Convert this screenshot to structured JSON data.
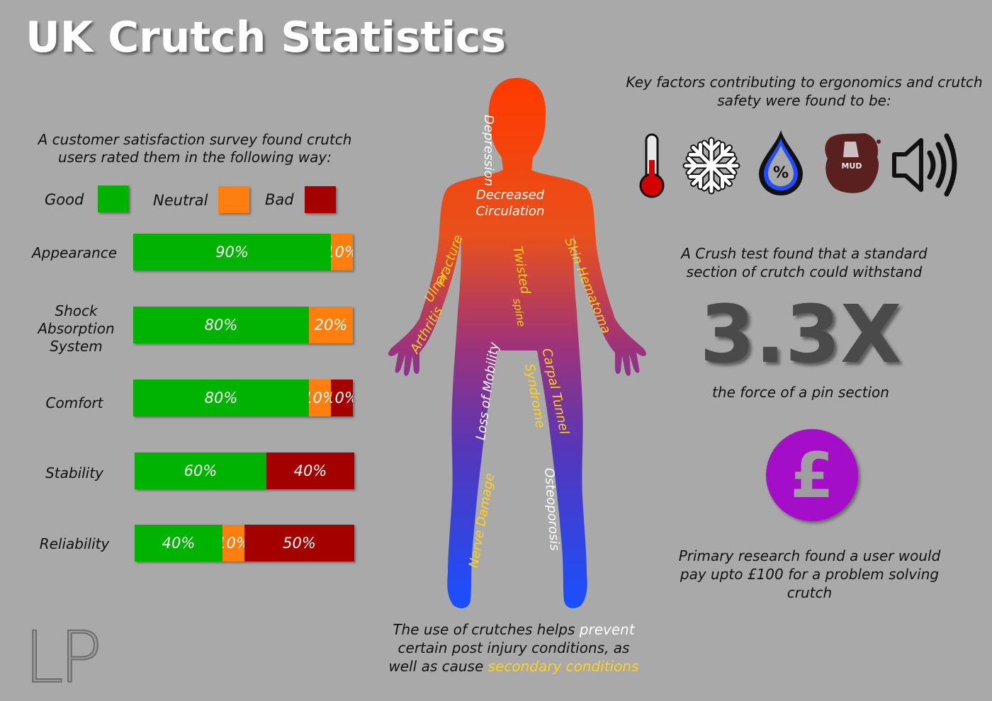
{
  "title": "UK Crutch Statistics",
  "survey": {
    "intro_line1": "A customer satisfaction survey found crutch",
    "intro_line2": "users rated them in the following way:",
    "legend": [
      {
        "label": "Good",
        "color": "#00b300"
      },
      {
        "label": "Neutral",
        "color": "#ff7f0e"
      },
      {
        "label": "Bad",
        "color": "#a50000"
      }
    ]
  },
  "chart_data": {
    "type": "bar",
    "orientation": "horizontal-stacked",
    "categories": [
      "Appearance",
      "Shock Absorption System",
      "Comfort",
      "Stability",
      "Reliability"
    ],
    "series": [
      {
        "name": "Good",
        "values": [
          90,
          80,
          80,
          60,
          40
        ],
        "color": "#00b300"
      },
      {
        "name": "Neutral",
        "values": [
          10,
          20,
          10,
          0,
          10
        ],
        "color": "#ff7f0e"
      },
      {
        "name": "Bad",
        "values": [
          0,
          0,
          10,
          40,
          50
        ],
        "color": "#a50000"
      }
    ],
    "labels": [
      [
        "90%",
        "10%",
        ""
      ],
      [
        "80%",
        "20%",
        ""
      ],
      [
        "80%",
        "10%",
        "10%"
      ],
      [
        "60%",
        "",
        "40%"
      ],
      [
        "40%",
        "10%",
        "50%"
      ]
    ],
    "unit": "%"
  },
  "body_figure": {
    "conditions": [
      {
        "text": "Depression",
        "color": "#ffffff"
      },
      {
        "text": "Decreased",
        "color": "#ffffff"
      },
      {
        "text": "Circulation",
        "color": "#ffffff"
      },
      {
        "text": "Fracture",
        "color": "#ffd21a"
      },
      {
        "text": "Ulnar",
        "color": "#ffd21a"
      },
      {
        "text": "Arthritis",
        "color": "#ffd21a"
      },
      {
        "text": "Twisted",
        "color": "#ffd21a"
      },
      {
        "text": "spine",
        "color": "#ffd21a"
      },
      {
        "text": "Skin Hematoma",
        "color": "#ffd21a"
      },
      {
        "text": "Loss of Mobility",
        "color": "#ffffff"
      },
      {
        "text": "Carpal Tunnel",
        "color": "#ffd21a"
      },
      {
        "text": "Syndrome",
        "color": "#ffd21a"
      },
      {
        "text": "Nerve Damage",
        "color": "#ffd21a"
      },
      {
        "text": "Osteoporosis",
        "color": "#ffffff"
      }
    ],
    "caption": {
      "part1": "The use of crutches helps ",
      "prevent": "prevent",
      "part2": "certain post injury conditions, as",
      "part3": "well as cause ",
      "secondary": "secondary conditions"
    }
  },
  "factors": {
    "line1": "Key factors contributing to ergonomics and crutch",
    "line2": "safety were found to be:",
    "icons": [
      "thermometer-icon",
      "snowflake-icon",
      "humidity-drop-icon",
      "mud-icon",
      "speaker-icon"
    ],
    "humidity_symbol": "%",
    "mud_text": "MUD"
  },
  "crush": {
    "line1": "A Crush test found that a standard",
    "line2": "section of crutch could withstand",
    "value": "3.3X",
    "line3": "the force of a pin section"
  },
  "price": {
    "symbol": "£",
    "line1": "Primary research found a user would",
    "line2": "pay upto £100 for a problem solving",
    "line3": "crutch"
  },
  "logo": "LP"
}
